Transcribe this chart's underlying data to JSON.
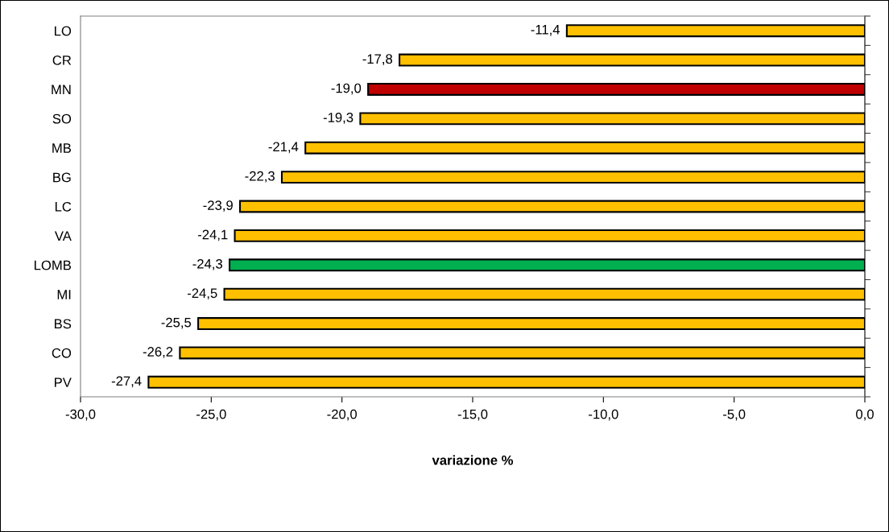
{
  "chart_data": {
    "type": "bar",
    "orientation": "horizontal",
    "xlabel": "variazione %",
    "categories": [
      "LO",
      "CR",
      "MN",
      "SO",
      "MB",
      "BG",
      "LC",
      "VA",
      "LOMB",
      "MI",
      "BS",
      "CO",
      "PV"
    ],
    "values": [
      -11.4,
      -17.8,
      -19.0,
      -19.3,
      -21.4,
      -22.3,
      -23.9,
      -24.1,
      -24.3,
      -24.5,
      -25.5,
      -26.2,
      -27.4
    ],
    "colors": [
      "#ffc000",
      "#ffc000",
      "#c00000",
      "#ffc000",
      "#ffc000",
      "#ffc000",
      "#ffc000",
      "#ffc000",
      "#00b050",
      "#ffc000",
      "#ffc000",
      "#ffc000",
      "#ffc000"
    ],
    "value_labels": [
      "-11,4",
      "-17,8",
      "-19,0",
      "-19,3",
      "-21,4",
      "-22,3",
      "-23,9",
      "-24,1",
      "-24,3",
      "-24,5",
      "-25,5",
      "-26,2",
      "-27,4"
    ],
    "xlim": [
      -30,
      0
    ],
    "xticks": [
      {
        "value": -30,
        "label": "-30,0"
      },
      {
        "value": -25,
        "label": "-25,0"
      },
      {
        "value": -20,
        "label": "-20,0"
      },
      {
        "value": -15,
        "label": "-15,0"
      },
      {
        "value": -10,
        "label": "-10,0"
      },
      {
        "value": -5,
        "label": "-5,0"
      },
      {
        "value": 0,
        "label": "0,0"
      }
    ],
    "grid": false,
    "legend": false
  }
}
